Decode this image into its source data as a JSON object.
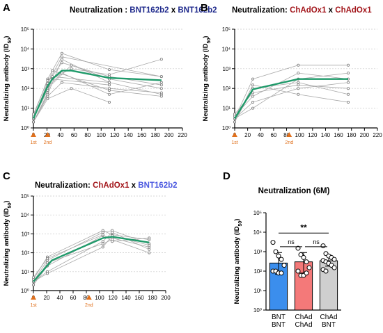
{
  "colors": {
    "navy": "#1f2a8c",
    "darkred": "#a3171c",
    "blue_label": "#4a58e0",
    "mean_line": "#1f9a6a",
    "individual_line": "#a8a8a8",
    "individual_point": "#7a7a7a",
    "arrow": "#e0701c",
    "bar_bnt": "#3b8eed",
    "bar_chad": "#f47979",
    "bar_mix": "#cfcfcf"
  },
  "panel_labels": [
    "A",
    "B",
    "C",
    "D"
  ],
  "chart_data": [
    {
      "panel": "A",
      "type": "line",
      "title_prefix": "Neutralization : ",
      "title_parts": [
        "BNT162b2",
        " x ",
        "BNT162b2"
      ],
      "title_colors": [
        "navy",
        "black",
        "navy"
      ],
      "ylabel": "Neutralizing antibody (ID50)",
      "yscale": "log",
      "ylim": [
        1,
        100000
      ],
      "yticks": [
        "10⁰",
        "10¹",
        "10²",
        "10³",
        "10⁴",
        "10⁵"
      ],
      "xlim": [
        0,
        220
      ],
      "xticks": [
        0,
        20,
        40,
        60,
        80,
        100,
        120,
        140,
        160,
        180,
        200,
        220
      ],
      "dose_markers": [
        {
          "x": 0,
          "label": "1st"
        },
        {
          "x": 21,
          "label": "2nd"
        }
      ],
      "mean_series": {
        "x": [
          0,
          21,
          28,
          42,
          56,
          112,
          189
        ],
        "y": [
          3,
          130,
          300,
          800,
          800,
          340,
          260
        ]
      },
      "individual_series": [
        {
          "x": [
            0,
            21,
            42,
            112,
            189
          ],
          "y": [
            3,
            200,
            2000,
            400,
            150
          ]
        },
        {
          "x": [
            0,
            21,
            28,
            112,
            189
          ],
          "y": [
            2,
            60,
            400,
            200,
            50
          ]
        },
        {
          "x": [
            0,
            21,
            42,
            112,
            189
          ],
          "y": [
            4,
            300,
            6000,
            900,
            400
          ]
        },
        {
          "x": [
            0,
            21,
            56,
            112,
            189
          ],
          "y": [
            3,
            100,
            1500,
            300,
            100
          ]
        },
        {
          "x": [
            0,
            21,
            42,
            112
          ],
          "y": [
            2,
            50,
            3000,
            200
          ]
        },
        {
          "x": [
            0,
            21,
            28,
            112,
            189
          ],
          "y": [
            3,
            150,
            800,
            80,
            40
          ]
        },
        {
          "x": [
            0,
            21,
            42,
            112,
            189
          ],
          "y": [
            2,
            40,
            200,
            100,
            60
          ]
        },
        {
          "x": [
            0,
            21,
            56,
            112,
            189
          ],
          "y": [
            5,
            250,
            1000,
            500,
            3000
          ]
        },
        {
          "x": [
            0,
            21,
            28,
            112
          ],
          "y": [
            3,
            80,
            300,
            150
          ]
        },
        {
          "x": [
            0,
            21,
            42,
            112,
            189
          ],
          "y": [
            3,
            120,
            600,
            50,
            200
          ]
        },
        {
          "x": [
            0,
            21,
            56,
            112
          ],
          "y": [
            2,
            30,
            100,
            20
          ]
        },
        {
          "x": [
            0,
            21,
            42,
            189
          ],
          "y": [
            3,
            180,
            4000,
            400
          ]
        }
      ]
    },
    {
      "panel": "B",
      "type": "line",
      "title_prefix": "Neutralization: ",
      "title_parts": [
        "ChAdOx1",
        " x ",
        "ChAdOx1"
      ],
      "title_colors": [
        "darkred",
        "black",
        "darkred"
      ],
      "ylabel": "Neutralizing antibody (ID50)",
      "yscale": "log",
      "ylim": [
        1,
        100000
      ],
      "yticks": [
        "10⁰",
        "10¹",
        "10²",
        "10³",
        "10⁴",
        "10⁵"
      ],
      "xlim": [
        0,
        220
      ],
      "xticks": [
        0,
        20,
        40,
        60,
        80,
        100,
        120,
        140,
        160,
        180,
        200,
        220
      ],
      "dose_markers": [
        {
          "x": 0,
          "label": "1st"
        },
        {
          "x": 84,
          "label": "2nd"
        }
      ],
      "mean_series": {
        "x": [
          0,
          28,
          98,
          175
        ],
        "y": [
          3,
          90,
          300,
          300
        ]
      },
      "individual_series": [
        {
          "x": [
            0,
            28,
            98,
            175
          ],
          "y": [
            3,
            300,
            1500,
            1500
          ]
        },
        {
          "x": [
            0,
            28,
            98,
            175
          ],
          "y": [
            2,
            100,
            200,
            50
          ]
        },
        {
          "x": [
            0,
            28,
            98,
            175
          ],
          "y": [
            4,
            40,
            600,
            300
          ]
        },
        {
          "x": [
            0,
            28,
            98,
            175
          ],
          "y": [
            3,
            20,
            100,
            200
          ]
        },
        {
          "x": [
            0,
            28,
            98,
            175
          ],
          "y": [
            2,
            150,
            50,
            20
          ]
        },
        {
          "x": [
            0,
            28,
            98,
            175
          ],
          "y": [
            3,
            10,
            300,
            600
          ]
        },
        {
          "x": [
            0,
            28,
            98,
            175
          ],
          "y": [
            5,
            60,
            150,
            100
          ]
        }
      ]
    },
    {
      "panel": "C",
      "type": "line",
      "title_prefix": "Neutralization: ",
      "title_parts": [
        "ChAdOx1",
        " x ",
        "BNT162b2"
      ],
      "title_colors": [
        "darkred",
        "black",
        "blue_label"
      ],
      "ylabel": "Neutralizing antibody (ID50)",
      "yscale": "log",
      "ylim": [
        1,
        100000
      ],
      "yticks": [
        "10⁰",
        "10¹",
        "10²",
        "10³",
        "10⁴",
        "10⁵"
      ],
      "xlim": [
        0,
        200
      ],
      "xticks": [
        0,
        20,
        40,
        60,
        80,
        100,
        120,
        140,
        160,
        180,
        200
      ],
      "dose_markers": [
        {
          "x": 0,
          "label": "1st"
        },
        {
          "x": 84,
          "label": "2nd"
        }
      ],
      "mean_series": {
        "x": [
          0,
          28,
          105,
          119,
          175
        ],
        "y": [
          3,
          40,
          600,
          700,
          350
        ]
      },
      "individual_series": [
        {
          "x": [
            0,
            21,
            105,
            119,
            175
          ],
          "y": [
            3,
            40,
            1200,
            1500,
            300
          ]
        },
        {
          "x": [
            0,
            21,
            105,
            119,
            175
          ],
          "y": [
            2,
            20,
            800,
            600,
            200
          ]
        },
        {
          "x": [
            0,
            21,
            105,
            119,
            175
          ],
          "y": [
            4,
            60,
            1500,
            900,
            500
          ]
        },
        {
          "x": [
            0,
            21,
            105,
            119,
            175
          ],
          "y": [
            3,
            10,
            400,
            1200,
            150
          ]
        },
        {
          "x": [
            0,
            21,
            105,
            119,
            175
          ],
          "y": [
            2,
            30,
            300,
            500,
            100
          ]
        },
        {
          "x": [
            0,
            21,
            105,
            119,
            175
          ],
          "y": [
            3,
            8,
            200,
            800,
            250
          ]
        },
        {
          "x": [
            0,
            21,
            105,
            119,
            175
          ],
          "y": [
            5,
            50,
            900,
            400,
            600
          ]
        }
      ]
    },
    {
      "panel": "D",
      "type": "bar",
      "title": "Neutralization (6M)",
      "ylabel": "Neutralizing antibody (ID50)",
      "yscale": "log",
      "ylim": [
        1,
        100000
      ],
      "yticks": [
        "10⁰",
        "10¹",
        "10²",
        "10³",
        "10⁴",
        "10⁵"
      ],
      "categories": [
        [
          "BNT",
          "BNT"
        ],
        [
          "ChAd",
          "ChAd"
        ],
        [
          "ChAd",
          "BNT"
        ]
      ],
      "values": [
        260,
        300,
        340
      ],
      "error_upper": [
        900,
        900,
        650
      ],
      "error_lower": [
        70,
        80,
        180
      ],
      "bar_colors": [
        "bar_bnt",
        "bar_chad",
        "bar_mix"
      ],
      "points": [
        [
          3000,
          1000,
          600,
          400,
          200,
          100,
          100,
          80,
          80
        ],
        [
          1500,
          700,
          500,
          300,
          150,
          100,
          60,
          60,
          80
        ],
        [
          2000,
          800,
          600,
          500,
          400,
          350,
          300,
          250,
          200,
          150,
          120,
          100
        ]
      ],
      "significance": [
        {
          "from": 0,
          "to": 1,
          "label": "ns"
        },
        {
          "from": 1,
          "to": 2,
          "label": "ns"
        },
        {
          "from": 0,
          "to": 2,
          "label": "**"
        }
      ]
    }
  ]
}
